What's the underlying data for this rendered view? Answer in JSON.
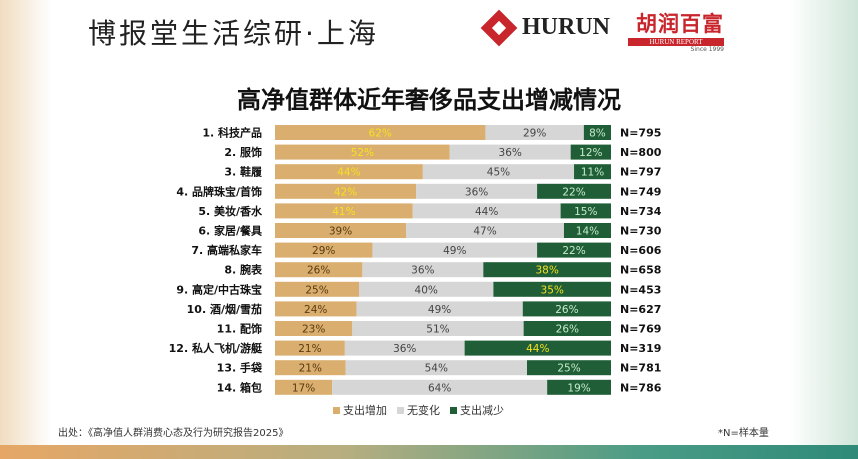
{
  "header": {
    "title": "博报堂生活综研·上海",
    "logo_hurun": "HURUN",
    "logo_report_cn": "胡润百富",
    "logo_report_en": "HURUN REPORT",
    "logo_since": "Since 1999"
  },
  "colors": {
    "increase": "#d9ae6e",
    "nochange": "#d6d6d6",
    "decrease": "#1f5e37",
    "highlight": "#f5e11f",
    "inc_text": "#5a3a10",
    "dec_text": "#c7ecc9",
    "mid_text": "#444444"
  },
  "chart_data": {
    "type": "bar",
    "stacked": true,
    "orientation": "horizontal",
    "title": "高净值群体近年奢侈品支出增减情况",
    "categories": [
      "1. 科技产品",
      "2. 服饰",
      "3. 鞋履",
      "4. 品牌珠宝/首饰",
      "5. 美妆/香水",
      "6. 家居/餐具",
      "7. 高端私家车",
      "8. 腕表",
      "9. 高定/中古珠宝",
      "10. 酒/烟/雪茄",
      "11. 配饰",
      "12. 私人飞机/游艇",
      "13. 手袋",
      "14. 箱包"
    ],
    "series": [
      {
        "name": "支出增加",
        "values": [
          62,
          52,
          44,
          42,
          41,
          39,
          29,
          26,
          25,
          24,
          23,
          21,
          21,
          17
        ],
        "highlight": [
          true,
          true,
          true,
          true,
          true,
          false,
          false,
          false,
          false,
          false,
          false,
          false,
          false,
          false
        ]
      },
      {
        "name": "无变化",
        "values": [
          29,
          36,
          45,
          36,
          44,
          47,
          49,
          36,
          40,
          49,
          51,
          36,
          54,
          64
        ]
      },
      {
        "name": "支出减少",
        "values": [
          8,
          12,
          11,
          22,
          15,
          14,
          22,
          38,
          35,
          26,
          26,
          44,
          25,
          19
        ],
        "highlight": [
          false,
          false,
          false,
          false,
          false,
          false,
          false,
          true,
          true,
          false,
          false,
          true,
          false,
          false
        ]
      }
    ],
    "n_labels": [
      "N=795",
      "N=800",
      "N=797",
      "N=749",
      "N=734",
      "N=730",
      "N=606",
      "N=658",
      "N=453",
      "N=627",
      "N=769",
      "N=319",
      "N=781",
      "N=786"
    ],
    "unit": "%",
    "legend_position": "bottom"
  },
  "footer": {
    "source": "出处：《高净值人群消费心态及行为研究报告2025》",
    "note": "*N=样本量"
  }
}
